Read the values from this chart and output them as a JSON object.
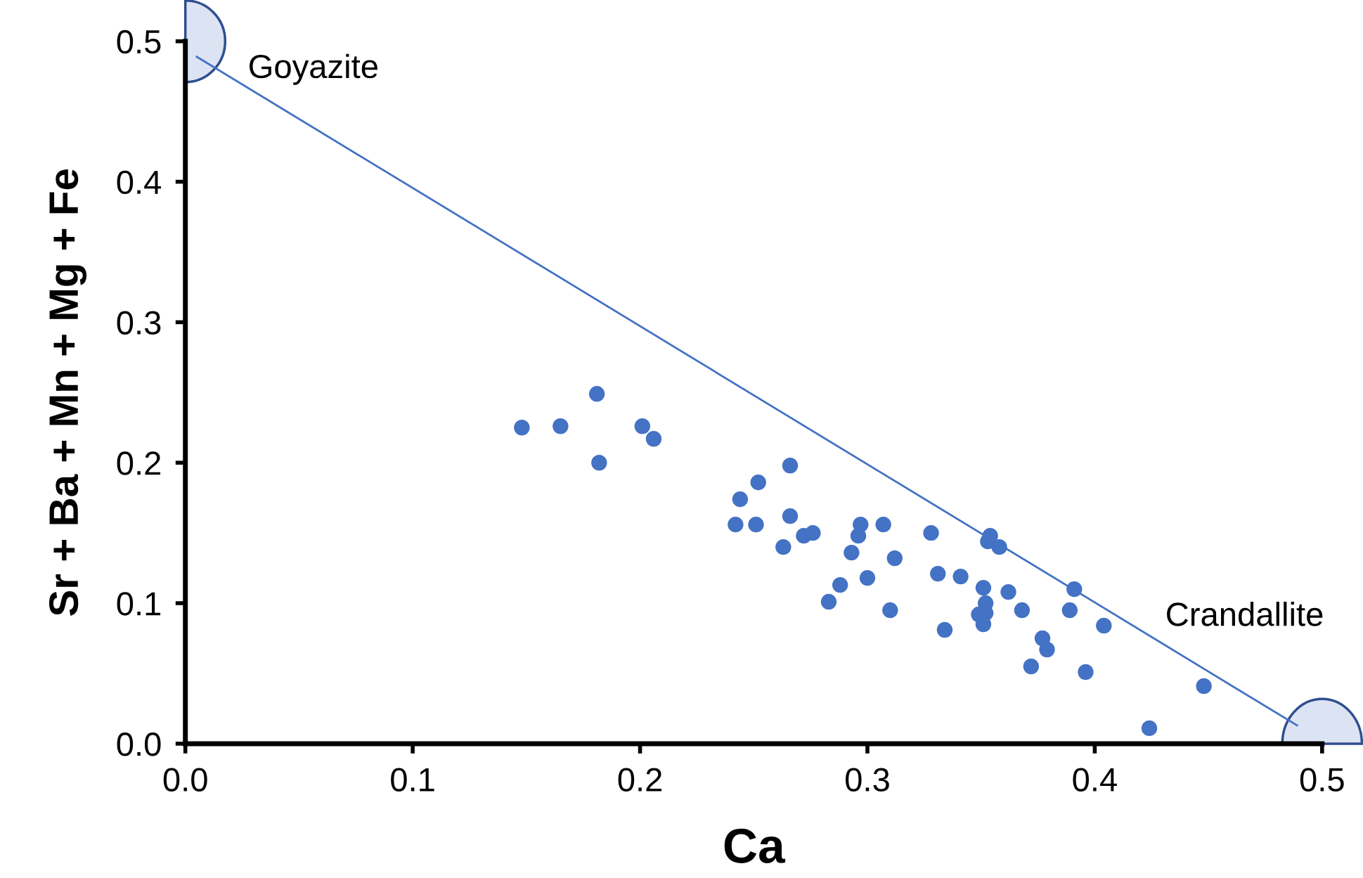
{
  "chart_data": {
    "type": "scatter",
    "xlabel": "Ca",
    "ylabel": "Sr + Ba + Mn + Mg + Fe",
    "xlim": [
      0,
      0.5
    ],
    "ylim": [
      0,
      0.5
    ],
    "xticks": [
      {
        "value": 0,
        "label": "0.0"
      },
      0.1,
      0.2,
      0.3,
      0.4,
      0.5
    ],
    "yticks": [
      {
        "value": 0,
        "label": "0.0"
      },
      0.1,
      0.2,
      0.3,
      0.4,
      0.5
    ],
    "grid": false,
    "annotations": [
      "Goyazite",
      "Crandallite"
    ],
    "series": [
      {
        "marker": "circle",
        "color": "#4472c4",
        "x": [
          0.148,
          0.165,
          0.181,
          0.182,
          0.201,
          0.206,
          0.242,
          0.244,
          0.251,
          0.252,
          0.263,
          0.266,
          0.266,
          0.272,
          0.276,
          0.283,
          0.288,
          0.293,
          0.296,
          0.297,
          0.3,
          0.307,
          0.31,
          0.312,
          0.328,
          0.331,
          0.334,
          0.341,
          0.349,
          0.351,
          0.351,
          0.352,
          0.352,
          0.353,
          0.354,
          0.358,
          0.362,
          0.368,
          0.372,
          0.377,
          0.379,
          0.389,
          0.391,
          0.396,
          0.404,
          0.448,
          0.424
        ],
        "values": [
          0.225,
          0.226,
          0.249,
          0.2,
          0.226,
          0.217,
          0.156,
          0.174,
          0.156,
          0.186,
          0.14,
          0.198,
          0.162,
          0.148,
          0.15,
          0.101,
          0.113,
          0.136,
          0.148,
          0.156,
          0.118,
          0.156,
          0.095,
          0.132,
          0.15,
          0.121,
          0.081,
          0.119,
          0.092,
          0.111,
          0.085,
          0.1,
          0.093,
          0.144,
          0.148,
          0.14,
          0.108,
          0.095,
          0.055,
          0.075,
          0.067,
          0.095,
          0.11,
          0.051,
          0.084,
          0.041,
          0.011
        ]
      },
      {
        "type": "line",
        "color": "#4472c4",
        "x": [
          0.005,
          0.489
        ],
        "values": [
          0.489,
          0.013
        ]
      }
    ]
  }
}
